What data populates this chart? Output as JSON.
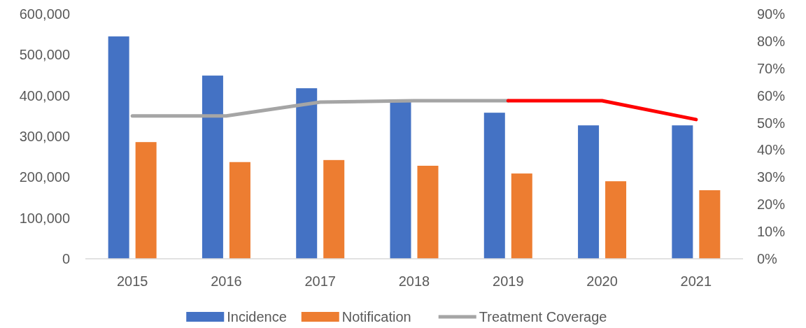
{
  "chart_data": {
    "type": "bar",
    "categories": [
      "2015",
      "2016",
      "2017",
      "2018",
      "2019",
      "2020",
      "2021"
    ],
    "series": [
      {
        "name": "Incidence",
        "color": "#4472c4",
        "values": [
          545000,
          449000,
          418000,
          385000,
          358000,
          327000,
          327000
        ]
      },
      {
        "name": "Notification",
        "color": "#ed7d31",
        "values": [
          286000,
          237000,
          242000,
          228000,
          209000,
          190000,
          168000
        ]
      },
      {
        "name": "Treatment Coverage",
        "type": "line",
        "axis": "y2",
        "color": "#a5a5a5",
        "values": [
          52.5,
          52.5,
          57.6,
          58.1,
          58.1,
          null,
          null
        ]
      },
      {
        "type": "line",
        "axis": "y2",
        "color": "#ff0000",
        "values": [
          null,
          null,
          null,
          null,
          58.1,
          58.1,
          51.2
        ]
      }
    ],
    "ylim": [
      0,
      600000
    ],
    "yticks": [
      {
        "value": 0,
        "label": "0"
      },
      {
        "value": 100000,
        "label": "100,000"
      },
      {
        "value": 200000,
        "label": "200,000"
      },
      {
        "value": 300000,
        "label": "300,000"
      },
      {
        "value": 400000,
        "label": "400,000"
      },
      {
        "value": 500000,
        "label": "500,000"
      },
      {
        "value": 600000,
        "label": "600,000"
      }
    ],
    "y2lim": [
      0,
      90
    ],
    "y2ticks": [
      {
        "value": 0,
        "label": "0%"
      },
      {
        "value": 10,
        "label": "10%"
      },
      {
        "value": 20,
        "label": "20%"
      },
      {
        "value": 30,
        "label": "30%"
      },
      {
        "value": 40,
        "label": "40%"
      },
      {
        "value": 50,
        "label": "50%"
      },
      {
        "value": 60,
        "label": "60%"
      },
      {
        "value": 70,
        "label": "70%"
      },
      {
        "value": 80,
        "label": "80%"
      },
      {
        "value": 90,
        "label": "90%"
      }
    ],
    "legend": "bottom"
  }
}
